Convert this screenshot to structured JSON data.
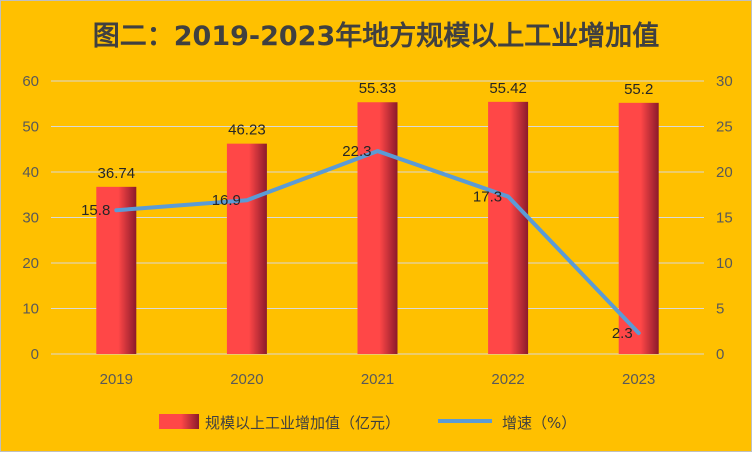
{
  "chart_data": {
    "type": "bar+line",
    "title": "图二：2019-2023年地方规模以上工业增加值",
    "categories": [
      "2019",
      "2020",
      "2021",
      "2022",
      "2023"
    ],
    "series": [
      {
        "name": "规模以上工业增加值（亿元）",
        "type": "bar",
        "axis": "left",
        "values": [
          36.74,
          46.23,
          55.33,
          55.42,
          55.2
        ],
        "labels": [
          "36.74",
          "46.23",
          "55.33",
          "55.42",
          "55.2"
        ],
        "color_light": "#FF4747",
        "color_dark": "#8B1A2B"
      },
      {
        "name": "增速（%）",
        "type": "line",
        "axis": "right",
        "values": [
          15.8,
          16.9,
          22.3,
          17.3,
          2.3
        ],
        "labels": [
          "15.8",
          "16.9",
          "22.3",
          "17.3",
          "2.3"
        ],
        "color": "#5B9BD5"
      }
    ],
    "y_left": {
      "min": 0,
      "max": 60,
      "step": 10,
      "ticks": [
        "0",
        "10",
        "20",
        "30",
        "40",
        "50",
        "60"
      ]
    },
    "y_right": {
      "min": 0,
      "max": 30,
      "step": 5,
      "ticks": [
        "0",
        "5",
        "10",
        "15",
        "20",
        "25",
        "30"
      ]
    },
    "grid": true,
    "legend_position": "bottom"
  },
  "colors": {
    "background": "#FFC000",
    "grid": "#D9D9D9"
  }
}
